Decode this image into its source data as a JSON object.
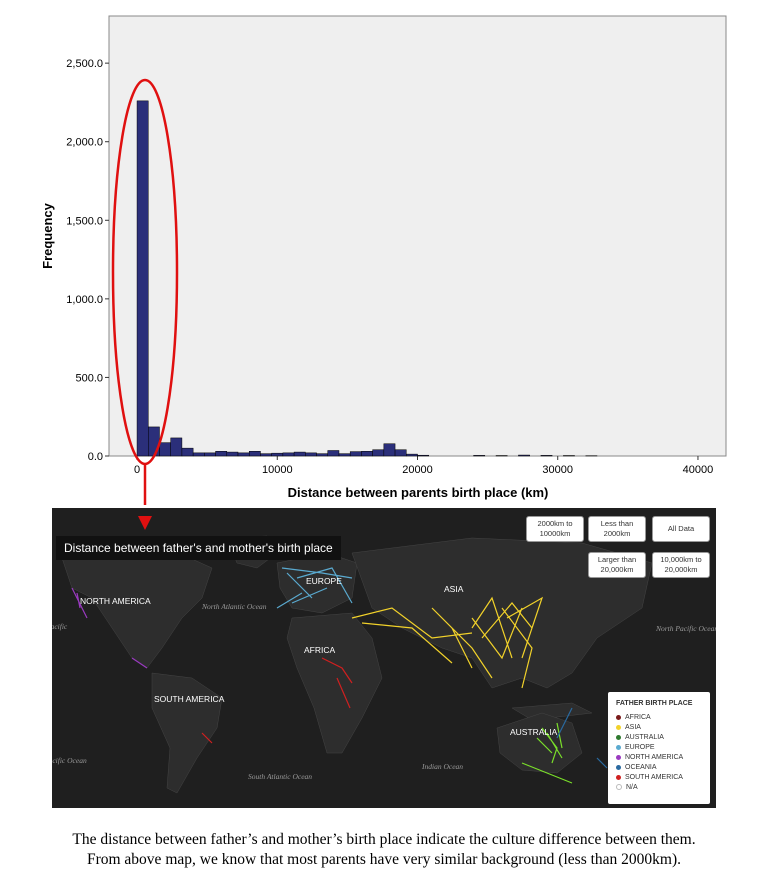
{
  "chart_data": {
    "type": "bar",
    "xlabel": "Distance between parents birth place (km)",
    "ylabel": "Frequency",
    "xlim": [
      -2000,
      42000
    ],
    "ylim": [
      0,
      2800
    ],
    "xticks": [
      {
        "value": 0,
        "label": "0"
      },
      {
        "value": 10000,
        "label": "10000"
      },
      {
        "value": 20000,
        "label": "20000"
      },
      {
        "value": 30000,
        "label": "30000"
      },
      {
        "value": 40000,
        "label": "40000"
      }
    ],
    "yticks": [
      {
        "value": 0,
        "label": "0.0"
      },
      {
        "value": 500,
        "label": "500.0"
      },
      {
        "value": 1000,
        "label": "1,000.0"
      },
      {
        "value": 1500,
        "label": "1,500.0"
      },
      {
        "value": 2000,
        "label": "2,000.0"
      },
      {
        "value": 2500,
        "label": "2,500.0"
      }
    ],
    "bin_width": 800,
    "bin_starts": [
      0,
      800,
      1600,
      2400,
      3200,
      4000,
      4800,
      5600,
      6400,
      7200,
      8000,
      8800,
      9600,
      10400,
      11200,
      12000,
      12800,
      13600,
      14400,
      15200,
      16000,
      16800,
      17600,
      18400,
      19200,
      20000,
      24000,
      25600,
      27200,
      28800,
      30400,
      32000
    ],
    "frequencies": [
      2260,
      185,
      85,
      115,
      50,
      20,
      20,
      30,
      25,
      20,
      30,
      15,
      18,
      20,
      25,
      20,
      15,
      35,
      15,
      28,
      30,
      40,
      78,
      40,
      12,
      5,
      4,
      3,
      6,
      4,
      3,
      2
    ],
    "annotation": "red ellipse around the 0 km bin with arrow pointing to map",
    "colors": {
      "bar": "#2b2f7a",
      "bar_edge": "#000000",
      "plot_bg": "#efefef",
      "annotation": "#e01010"
    }
  },
  "map": {
    "title": "Distance between father's and mother's birth place",
    "buttons": [
      {
        "label": "2000km to 10000km"
      },
      {
        "label": "Less than 2000km"
      },
      {
        "label": "All Data"
      },
      {
        "label": "Larger than 20,000km"
      },
      {
        "label": "10,000km to 20,000km"
      }
    ],
    "continents": [
      "NORTH AMERICA",
      "EUROPE",
      "ASIA",
      "AFRICA",
      "SOUTH AMERICA",
      "AUSTRALIA"
    ],
    "oceans": [
      "North Atlantic Ocean",
      "North Pacific Ocean",
      "Pacific",
      "Pacific Ocean",
      "South Atlantic Ocean",
      "Indian Ocean"
    ],
    "legend": {
      "title": "FATHER BIRTH PLACE",
      "items": [
        {
          "label": "AFRICA",
          "color": "#7a1a1a"
        },
        {
          "label": "ASIA",
          "color": "#f2d22a"
        },
        {
          "label": "AUSTRALIA",
          "color": "#2f7a2f"
        },
        {
          "label": "EUROPE",
          "color": "#5aaad0"
        },
        {
          "label": "NORTH AMERICA",
          "color": "#9a3ac0"
        },
        {
          "label": "OCEANIA",
          "color": "#2a6aa0"
        },
        {
          "label": "SOUTH AMERICA",
          "color": "#d02020"
        },
        {
          "label": "N/A",
          "color": "#ffffff"
        }
      ]
    }
  },
  "caption": {
    "line1": "The distance between father’s and mother’s birth place indicate the culture difference between them.",
    "line2": "From above map, we know that most parents have very similar background (less than 2000km)."
  }
}
